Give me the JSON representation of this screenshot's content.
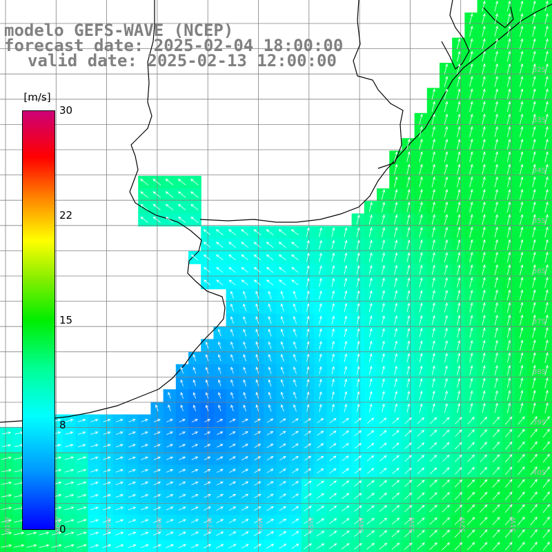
{
  "header": {
    "line1": "modelo GEFS-WAVE (NCEP)",
    "line2": "forecast date: 2025-02-04 18:00:00",
    "line3": "valid date: 2025-02-13 12:00:00"
  },
  "colorbar": {
    "unit": "[m/s]",
    "ticks": [
      "30",
      "22",
      "15",
      "8",
      "0"
    ],
    "min": 0,
    "max": 30,
    "colors": [
      "#0000ff",
      "#0099ff",
      "#00ffff",
      "#00ff99",
      "#00ee00",
      "#88ee00",
      "#ffff00",
      "#ff8800",
      "#ff0000",
      "#cc0077"
    ]
  },
  "map": {
    "field": "wind speed and direction",
    "lat_labels": [
      "32S",
      "33S",
      "34S",
      "35S",
      "36S",
      "37S",
      "38S",
      "39S",
      "40S"
    ],
    "lon_labels": [
      "61W",
      "60W",
      "59W",
      "58W",
      "57W",
      "56W",
      "55W",
      "54W",
      "53W",
      "52W",
      "51W"
    ],
    "land_color": "#ffffff",
    "grid_color": "#808080",
    "arrow_color": "#ffffff"
  }
}
